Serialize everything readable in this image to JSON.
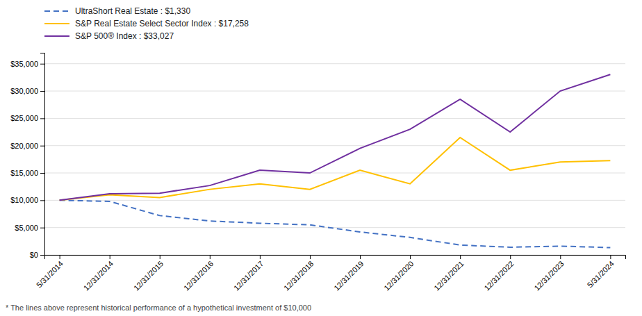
{
  "chart_data": {
    "type": "line",
    "categories": [
      "5/31/2014",
      "12/31/2014",
      "12/31/2015",
      "12/31/2016",
      "12/31/2017",
      "12/31/2018",
      "12/31/2019",
      "12/31/2020",
      "12/31/2021",
      "12/31/2022",
      "12/31/2023",
      "5/31/2024"
    ],
    "series": [
      {
        "name": "UltraShort Real Estate : $1,330",
        "color": "#4472C4",
        "line_style": "dashed",
        "values": [
          10000,
          9800,
          7200,
          6200,
          5800,
          5500,
          4200,
          3200,
          1800,
          1400,
          1600,
          1330
        ]
      },
      {
        "name": "S&P Real Estate Select Sector Index : $17,258",
        "color": "#FFC000",
        "line_style": "solid",
        "values": [
          10000,
          11000,
          10500,
          12000,
          13000,
          12000,
          15500,
          13000,
          21500,
          15500,
          17000,
          17258
        ]
      },
      {
        "name": "S&P 500® Index : $33,027",
        "color": "#7030A0",
        "line_style": "solid",
        "values": [
          10000,
          11200,
          11300,
          12700,
          15500,
          15000,
          19500,
          23000,
          28500,
          22500,
          30000,
          33027
        ]
      }
    ],
    "ylim": [
      0,
      37000
    ],
    "yticks": [
      {
        "value": 0,
        "label": "$0"
      },
      {
        "value": 5000,
        "label": "$5,000"
      },
      {
        "value": 10000,
        "label": "$10,000"
      },
      {
        "value": 15000,
        "label": "$15,000"
      },
      {
        "value": 20000,
        "label": "$20,000"
      },
      {
        "value": 25000,
        "label": "$25,000"
      },
      {
        "value": 30000,
        "label": "$30,000"
      },
      {
        "value": 35000,
        "label": "$35,000"
      }
    ],
    "grid": true,
    "legend": "top",
    "annotations": [
      "* The lines above represent historical performance of a hypothetical investment of $10,000"
    ]
  }
}
